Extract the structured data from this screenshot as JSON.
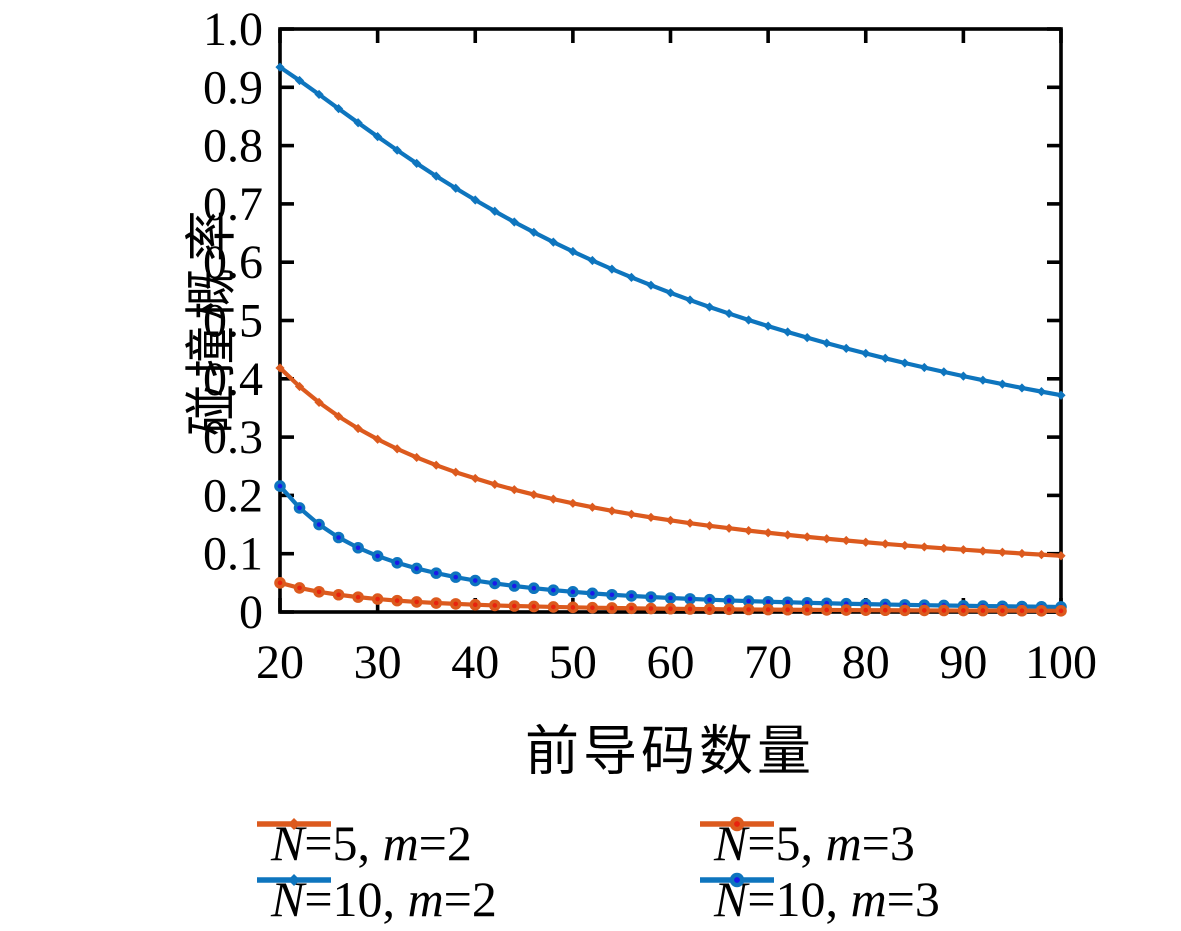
{
  "figure": {
    "background": "#ffffff",
    "axis_color": "#000000"
  },
  "chart_data": {
    "type": "line",
    "title": "",
    "xlabel": "前导码数量",
    "ylabel": "碰撞概率",
    "xlim": [
      20,
      100
    ],
    "ylim": [
      0,
      1.0
    ],
    "grid": false,
    "legend_position": "below",
    "x_ticks": [
      20,
      30,
      40,
      50,
      60,
      70,
      80,
      90,
      100
    ],
    "y_ticks": [
      0,
      0.1,
      0.2,
      0.3,
      0.4,
      0.5,
      0.6,
      0.7,
      0.8,
      0.9,
      1.0
    ],
    "y_tick_labels": [
      "0",
      "0.1",
      "0.2",
      "0.3",
      "0.4",
      "0.5",
      "0.6",
      "0.7",
      "0.8",
      "0.9",
      "1.0"
    ],
    "x": [
      20,
      22,
      24,
      26,
      28,
      30,
      32,
      34,
      36,
      38,
      40,
      42,
      44,
      46,
      48,
      50,
      52,
      54,
      56,
      58,
      60,
      62,
      64,
      66,
      68,
      70,
      72,
      74,
      76,
      78,
      80,
      82,
      84,
      86,
      88,
      90,
      92,
      94,
      96,
      98,
      100
    ],
    "series": [
      {
        "name": "N=5, m=2",
        "color": "#DC5A1E",
        "marker": "diamond",
        "values": [
          0.4186,
          0.3868,
          0.3595,
          0.3356,
          0.3147,
          0.2963,
          0.2798,
          0.2651,
          0.2518,
          0.2398,
          0.2291,
          0.2189,
          0.2098,
          0.2014,
          0.1936,
          0.1864,
          0.1797,
          0.1735,
          0.1677,
          0.1623,
          0.1572,
          0.1524,
          0.1479,
          0.1437,
          0.1396,
          0.1359,
          0.1323,
          0.1289,
          0.1256,
          0.1226,
          0.1196,
          0.1168,
          0.1142,
          0.1116,
          0.1092,
          0.1069,
          0.1046,
          0.1025,
          0.1004,
          0.0984,
          0.0965
        ]
      },
      {
        "name": "N=5, m=3",
        "color": "#DC5A1E",
        "marker": "circle-dot",
        "marker_center": "#E8230E",
        "values": [
          0.05,
          0.0413,
          0.0347,
          0.0296,
          0.0255,
          0.0222,
          0.0195,
          0.0173,
          0.0154,
          0.0139,
          0.0125,
          0.0113,
          0.0103,
          0.0095,
          0.0087,
          0.008,
          0.0074,
          0.0069,
          0.0064,
          0.0059,
          0.0056,
          0.0052,
          0.0049,
          0.0046,
          0.0043,
          0.0041,
          0.0039,
          0.0037,
          0.0035,
          0.0033,
          0.0031,
          0.003,
          0.0028,
          0.0027,
          0.0026,
          0.0025,
          0.0024,
          0.0023,
          0.0022,
          0.0021,
          0.002
        ]
      },
      {
        "name": "N=10, m=2",
        "color": "#0E75BE",
        "marker": "diamond",
        "values": [
          0.9345,
          0.9117,
          0.8878,
          0.8634,
          0.8392,
          0.8154,
          0.7921,
          0.7695,
          0.7477,
          0.7268,
          0.7067,
          0.6874,
          0.6689,
          0.6513,
          0.6344,
          0.6183,
          0.6029,
          0.5881,
          0.574,
          0.5605,
          0.5475,
          0.5351,
          0.5232,
          0.5119,
          0.5009,
          0.4904,
          0.4803,
          0.4706,
          0.4612,
          0.4522,
          0.4436,
          0.4352,
          0.4271,
          0.4194,
          0.4119,
          0.4046,
          0.3976,
          0.3909,
          0.3843,
          0.378,
          0.3718
        ]
      },
      {
        "name": "N=10, m=3",
        "color": "#0E75BE",
        "marker": "circle-dot",
        "marker_center": "#1A1AE8",
        "values": [
          0.216,
          0.1785,
          0.15,
          0.1278,
          0.1102,
          0.096,
          0.0844,
          0.0747,
          0.0667,
          0.0598,
          0.054,
          0.049,
          0.0446,
          0.0408,
          0.0375,
          0.0346,
          0.032,
          0.0296,
          0.0276,
          0.0257,
          0.024,
          0.0225,
          0.0211,
          0.0198,
          0.0187,
          0.0176,
          0.0167,
          0.0158,
          0.015,
          0.0142,
          0.0135,
          0.0129,
          0.0122,
          0.0117,
          0.0112,
          0.0107,
          0.0102,
          0.0098,
          0.0094,
          0.009,
          0.0086
        ]
      }
    ],
    "draw_order": [
      2,
      0,
      3,
      1
    ],
    "legend_grid": {
      "rows": 2,
      "cols": 2,
      "row_major_series_index": [
        0,
        1,
        2,
        3
      ]
    }
  }
}
